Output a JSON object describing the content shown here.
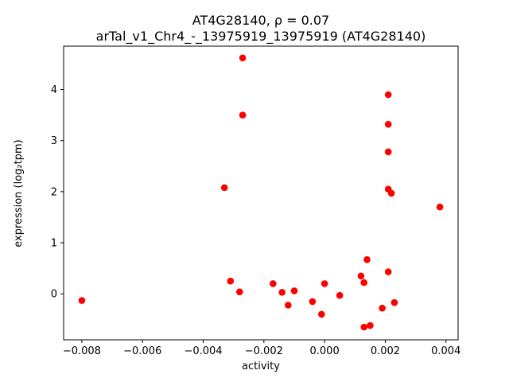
{
  "figure": {
    "title_line1": "AT4G28140, ρ = 0.07",
    "title_line2": "arTal_v1_Chr4_-_13975919_13975919 (AT4G28140)",
    "background": "#ffffff"
  },
  "chart_data": {
    "type": "scatter",
    "title": "AT4G28140, ρ = 0.07",
    "subtitle": "arTal_v1_Chr4_-_13975919_13975919 (AT4G28140)",
    "xlabel": "activity",
    "ylabel": "expression (log₂tpm)",
    "xlim": [
      -0.0086,
      0.0044
    ],
    "ylim": [
      -0.9,
      4.85
    ],
    "x_ticks": [
      -0.008,
      -0.006,
      -0.004,
      -0.002,
      0.0,
      0.002,
      0.004
    ],
    "x_tick_labels": [
      "−0.008",
      "−0.006",
      "−0.004",
      "−0.002",
      "0.000",
      "0.002",
      "0.004"
    ],
    "y_ticks": [
      0,
      1,
      2,
      3,
      4
    ],
    "y_tick_labels": [
      "0",
      "1",
      "2",
      "3",
      "4"
    ],
    "grid": false,
    "legend": null,
    "marker_color": "#ff0000",
    "marker_radius": 4.3,
    "points": [
      [
        -0.008,
        -0.13
      ],
      [
        -0.0033,
        2.08
      ],
      [
        -0.0031,
        0.25
      ],
      [
        -0.0027,
        4.62
      ],
      [
        -0.0027,
        3.5
      ],
      [
        -0.0028,
        0.04
      ],
      [
        -0.0017,
        0.2
      ],
      [
        -0.0014,
        0.03
      ],
      [
        -0.0012,
        -0.22
      ],
      [
        -0.001,
        0.06
      ],
      [
        -0.0004,
        -0.15
      ],
      [
        0.0,
        0.2
      ],
      [
        -0.0001,
        -0.4
      ],
      [
        0.0005,
        -0.03
      ],
      [
        0.0012,
        0.35
      ],
      [
        0.0013,
        0.22
      ],
      [
        0.0014,
        0.67
      ],
      [
        0.0013,
        -0.65
      ],
      [
        0.0015,
        -0.62
      ],
      [
        0.0019,
        -0.28
      ],
      [
        0.0021,
        3.9
      ],
      [
        0.0021,
        3.32
      ],
      [
        0.0021,
        2.78
      ],
      [
        0.0021,
        2.05
      ],
      [
        0.0022,
        1.97
      ],
      [
        0.0021,
        0.43
      ],
      [
        0.0023,
        -0.17
      ],
      [
        0.0038,
        1.7
      ]
    ]
  }
}
